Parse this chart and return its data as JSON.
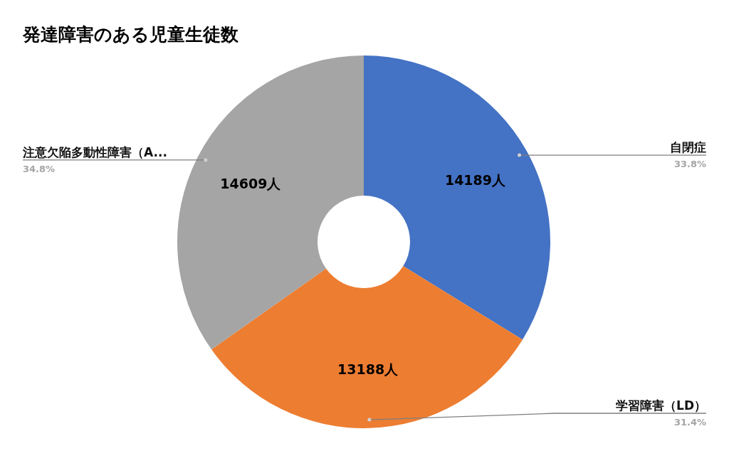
{
  "chart_data": {
    "type": "donut",
    "title": "発達障害のある児童生徒数",
    "categories": [
      "自閉症",
      "学習障害（LD）",
      "注意欠陥多動性障害（A..."
    ],
    "values": [
      14189,
      13188,
      14609
    ],
    "colors": [
      "#4472c4",
      "#ed7d31",
      "#a5a5a5"
    ],
    "value_labels": [
      "14189人",
      "13188人",
      "14609人"
    ],
    "annotations": [
      "33.8%",
      "31.4%",
      "34.8%"
    ]
  }
}
